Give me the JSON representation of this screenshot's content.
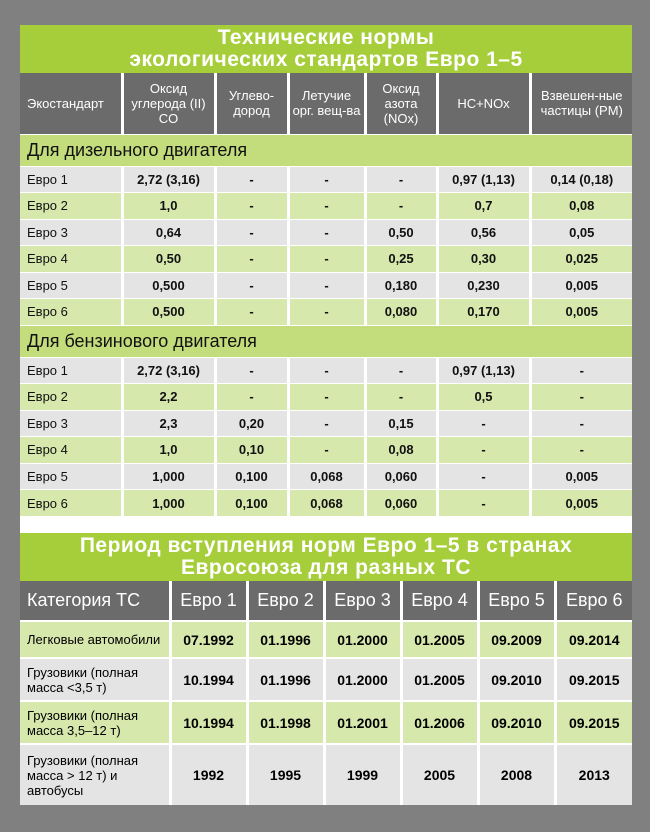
{
  "table1": {
    "title_line1": "Технические нормы",
    "title_line2": "экологических стандартов Евро 1–5",
    "headers": [
      "Экостандарт",
      "Оксид углерода (II) CO",
      "Углево-дород",
      "Летучие орг. вещ-ва",
      "Оксид азота (NOx)",
      "HC+NOx",
      "Взвешен-ные частицы (PM)"
    ],
    "sections": [
      {
        "label": "Для дизельного двигателя",
        "rows": [
          [
            "Евро 1",
            "2,72 (3,16)",
            "-",
            "-",
            "-",
            "0,97 (1,13)",
            "0,14 (0,18)"
          ],
          [
            "Евро 2",
            "1,0",
            "-",
            "-",
            "-",
            "0,7",
            "0,08"
          ],
          [
            "Евро 3",
            "0,64",
            "-",
            "-",
            "0,50",
            "0,56",
            "0,05"
          ],
          [
            "Евро 4",
            "0,50",
            "-",
            "-",
            "0,25",
            "0,30",
            "0,025"
          ],
          [
            "Евро 5",
            "0,500",
            "-",
            "-",
            "0,180",
            "0,230",
            "0,005"
          ],
          [
            "Евро 6",
            "0,500",
            "-",
            "-",
            "0,080",
            "0,170",
            "0,005"
          ]
        ]
      },
      {
        "label": "Для бензинового двигателя",
        "rows": [
          [
            "Евро 1",
            "2,72 (3,16)",
            "-",
            "-",
            "-",
            "0,97 (1,13)",
            "-"
          ],
          [
            "Евро 2",
            "2,2",
            "-",
            "-",
            "-",
            "0,5",
            "-"
          ],
          [
            "Евро 3",
            "2,3",
            "0,20",
            "-",
            "0,15",
            "-",
            "-"
          ],
          [
            "Евро 4",
            "1,0",
            "0,10",
            "-",
            "0,08",
            "-",
            "-"
          ],
          [
            "Евро 5",
            "1,000",
            "0,100",
            "0,068",
            "0,060",
            "-",
            "0,005"
          ],
          [
            "Евро 6",
            "1,000",
            "0,100",
            "0,068",
            "0,060",
            "-",
            "0,005"
          ]
        ]
      }
    ]
  },
  "table2": {
    "title_line1": "Период вступления норм Евро 1–5 в странах",
    "title_line2": "Евросоюза для разных ТС",
    "headers": [
      "Категория ТС",
      "Евро 1",
      "Евро 2",
      "Евро 3",
      "Евро 4",
      "Евро 5",
      "Евро 6"
    ],
    "rows": [
      [
        "Легковые автомобили",
        "07.1992",
        "01.1996",
        "01.2000",
        "01.2005",
        "09.2009",
        "09.2014"
      ],
      [
        "Грузовики (полная масса <3,5 т)",
        "10.1994",
        "01.1996",
        "01.2000",
        "01.2005",
        "09.2010",
        "09.2015"
      ],
      [
        "Грузовики (полная масса 3,5–12 т)",
        "10.1994",
        "01.1998",
        "01.2001",
        "01.2006",
        "09.2010",
        "09.2015"
      ],
      [
        "Грузовики (полная масса > 12 т) и автобусы",
        "1992",
        "1995",
        "1999",
        "2005",
        "2008",
        "2013"
      ]
    ]
  },
  "colors": {
    "title_green": "#a6cd3a",
    "header_gray": "#6b6b6b",
    "section_green": "#c3dc7c",
    "row_green": "#d7e8ad",
    "row_gray": "#e4e4e4",
    "background": "#808080"
  }
}
